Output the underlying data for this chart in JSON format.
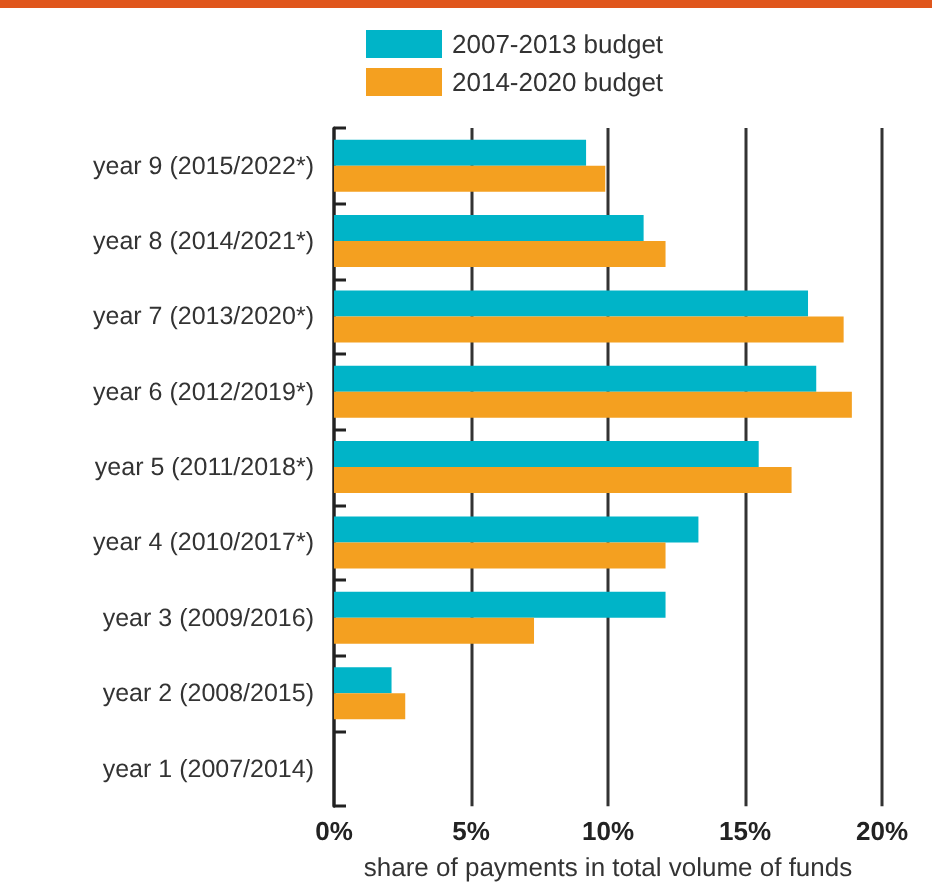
{
  "chart_data": {
    "type": "bar",
    "orientation": "horizontal",
    "xlabel": "share of payments in total volume of funds",
    "categories": [
      "year 9 (2015/2022*)",
      "year 8 (2014/2021*)",
      "year 7 (2013/2020*)",
      "year 6 (2012/2019*)",
      "year 5 (2011/2018*)",
      "year 4 (2010/2017*)",
      "year 3 (2009/2016)",
      "year 2 (2008/2015)",
      "year 1 (2007/2014)"
    ],
    "series": [
      {
        "name": "2007-2013 budget",
        "color": "#00b4c8",
        "values": [
          9.2,
          11.3,
          17.3,
          17.6,
          15.5,
          13.3,
          12.1,
          2.1,
          0
        ]
      },
      {
        "name": "2014-2020 budget",
        "color": "#f4a020",
        "values": [
          9.9,
          12.1,
          18.6,
          18.9,
          16.7,
          12.1,
          7.3,
          2.6,
          0
        ]
      }
    ],
    "xlim": [
      0,
      20
    ],
    "xticks": [
      {
        "value": 0,
        "label": "0%"
      },
      {
        "value": 5,
        "label": "5%"
      },
      {
        "value": 10,
        "label": "10%"
      },
      {
        "value": 15,
        "label": "15%"
      },
      {
        "value": 20,
        "label": "20%"
      }
    ],
    "grid": "x",
    "legend": "top"
  }
}
